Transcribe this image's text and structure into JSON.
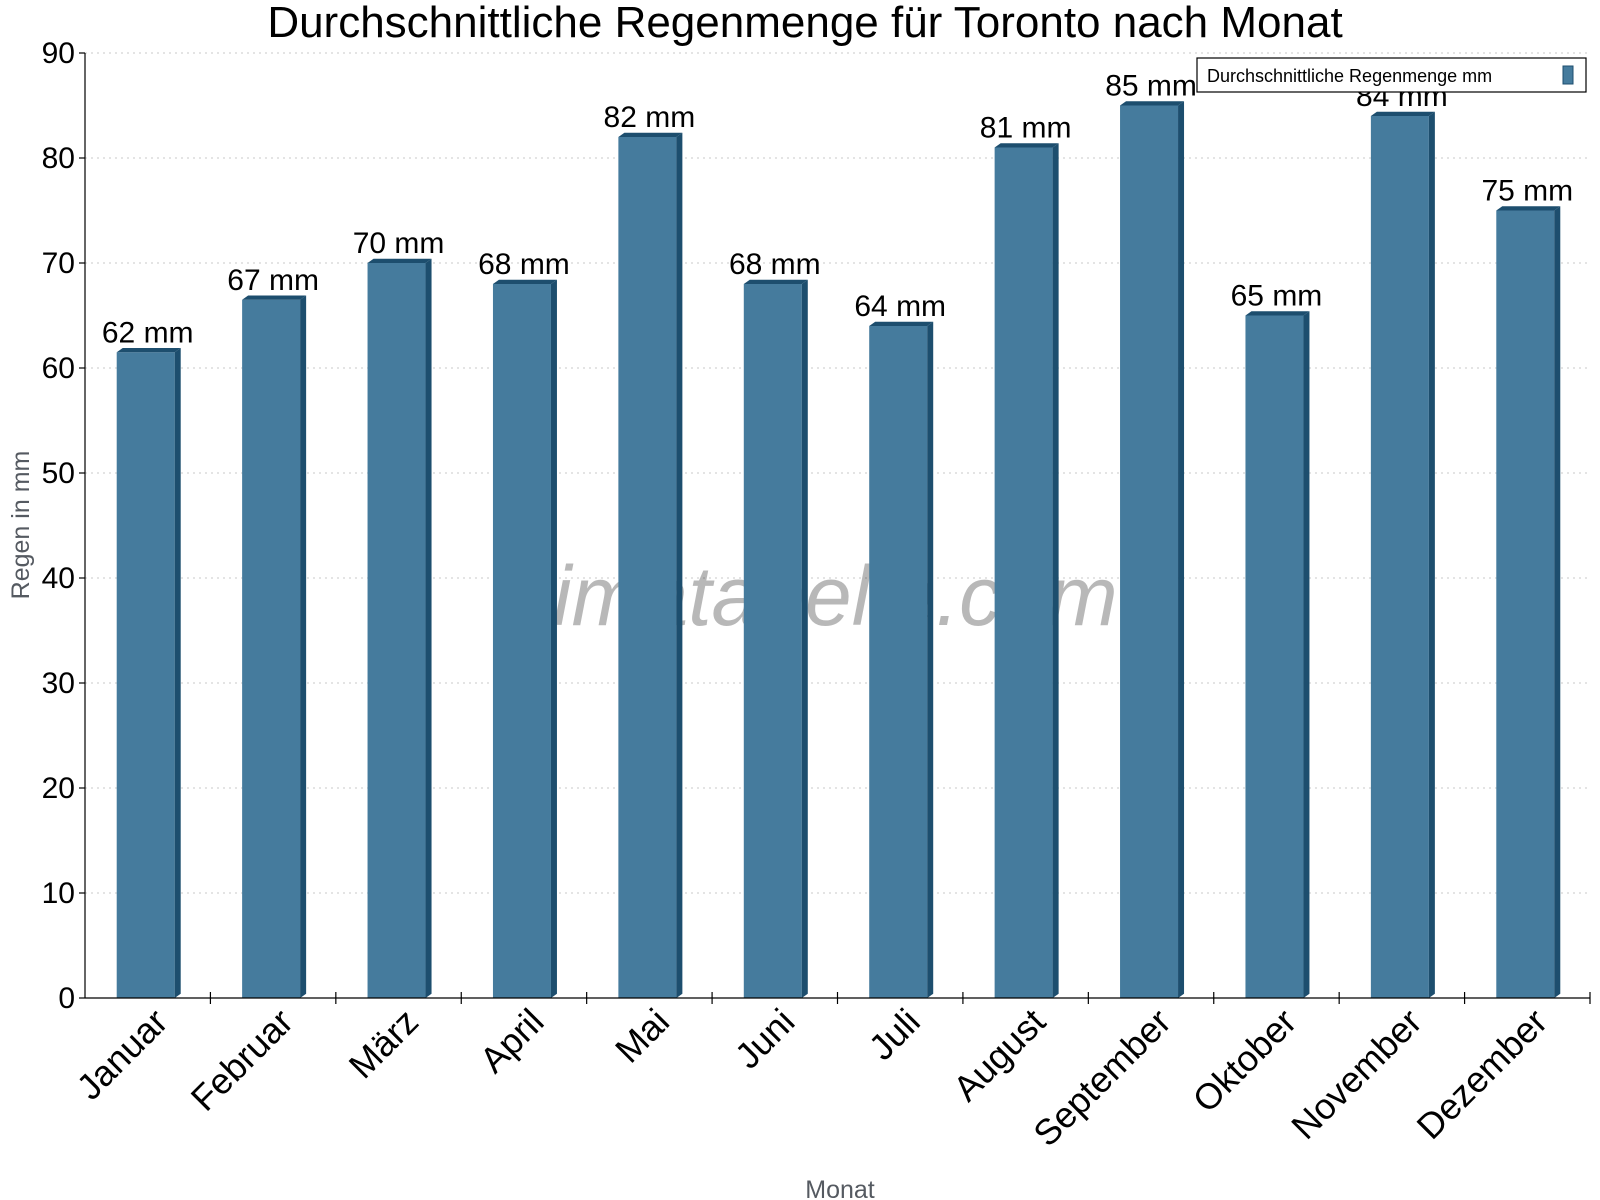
{
  "chart_data": {
    "type": "bar",
    "title": "Durchschnittliche Regenmenge für Toronto nach Monat",
    "xlabel": "Monat",
    "ylabel": "Regen in mm",
    "categories": [
      "Januar",
      "Februar",
      "März",
      "April",
      "Mai",
      "Juni",
      "Juli",
      "August",
      "September",
      "Oktober",
      "November",
      "Dezember"
    ],
    "series": [
      {
        "name": "Durchschnittliche Regenmenge mm",
        "values": [
          61.5,
          66.5,
          70,
          68,
          82,
          68,
          64,
          81,
          85,
          65,
          84,
          75
        ],
        "labels": [
          "62 mm",
          "67 mm",
          "70 mm",
          "68 mm",
          "82 mm",
          "68 mm",
          "64 mm",
          "81 mm",
          "85 mm",
          "65 mm",
          "84 mm",
          "75 mm"
        ]
      }
    ],
    "ylim": [
      0,
      90
    ],
    "yticks": [
      0,
      10,
      20,
      30,
      40,
      50,
      60,
      70,
      80,
      90
    ],
    "grid": true,
    "legend_position": "top-right",
    "colors": {
      "bar": "#457b9d",
      "bar_side": "#1d4e6e",
      "grid": "#c8c8c8",
      "axis": "#000000"
    }
  },
  "watermark": "klimatabelle.com"
}
